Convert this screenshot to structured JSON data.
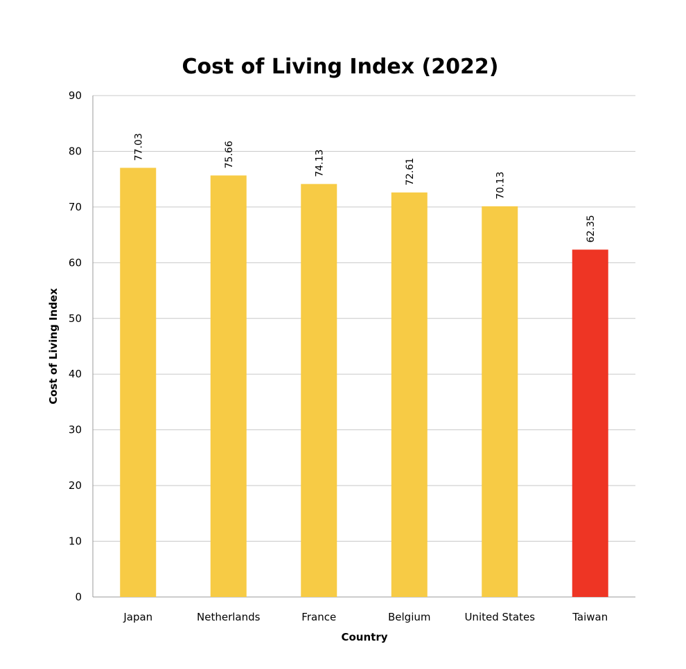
{
  "chart_data": {
    "type": "bar",
    "title": "Cost of Living Index (2022)",
    "xlabel": "Country",
    "ylabel": "Cost of Living Index",
    "ylim": [
      0,
      90
    ],
    "ytick_step": 10,
    "ytick_labels": [
      "0",
      "10",
      "20",
      "30",
      "40",
      "50",
      "60",
      "70",
      "80",
      "90"
    ],
    "grid": true,
    "categories": [
      "Japan",
      "Netherlands",
      "France",
      "Belgium",
      "United States",
      "Taiwan"
    ],
    "values": [
      77.03,
      75.66,
      74.13,
      72.61,
      70.13,
      62.35
    ],
    "value_labels": [
      "77.03",
      "75.66",
      "74.13",
      "72.61",
      "70.13",
      "62.35"
    ],
    "colors": {
      "default_bar": "#F7CB45",
      "highlight_bar": "#EE3524",
      "highlight_category": "Taiwan"
    }
  }
}
